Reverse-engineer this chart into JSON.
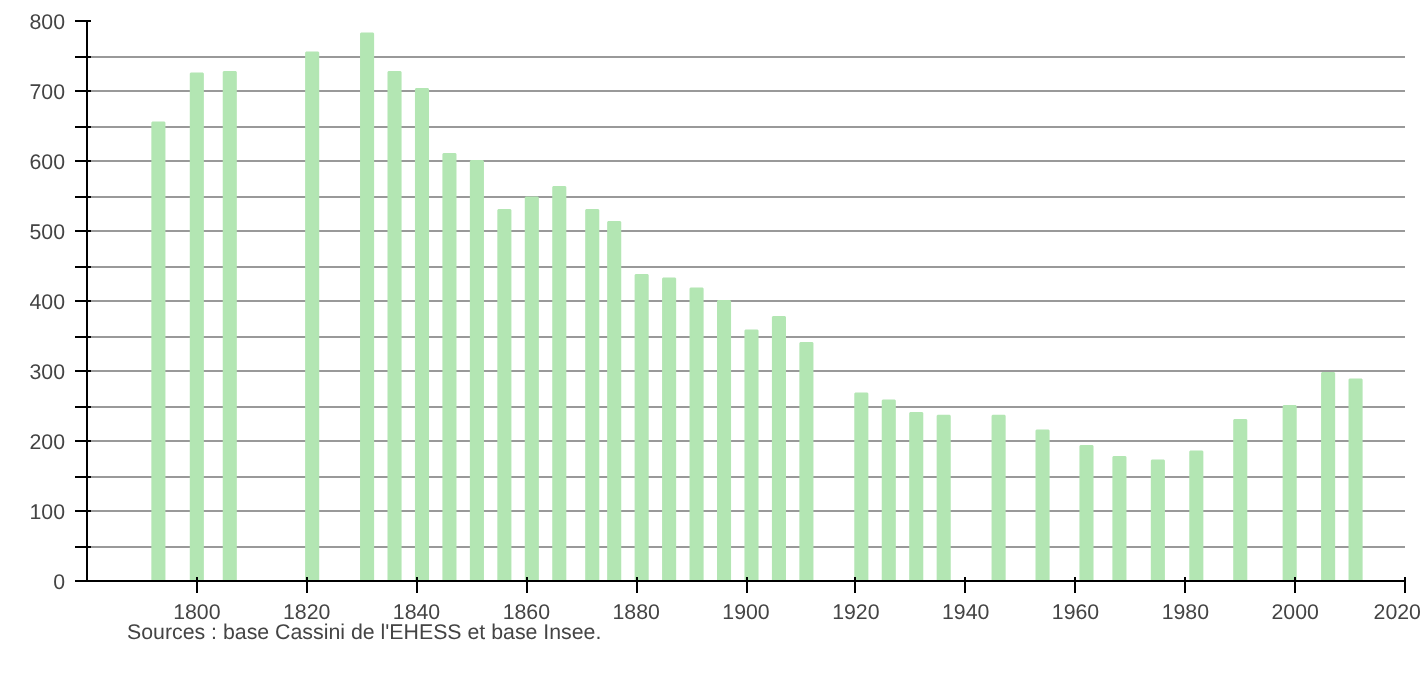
{
  "chart_data": {
    "type": "bar",
    "x": [
      1793,
      1800,
      1806,
      1821,
      1831,
      1836,
      1841,
      1846,
      1851,
      1856,
      1861,
      1866,
      1872,
      1876,
      1881,
      1886,
      1891,
      1896,
      1901,
      1906,
      1911,
      1921,
      1926,
      1931,
      1936,
      1946,
      1954,
      1962,
      1968,
      1975,
      1982,
      1990,
      1999,
      2006,
      2011
    ],
    "values": [
      655,
      725,
      727,
      755,
      782,
      727,
      703,
      610,
      600,
      530,
      548,
      563,
      530,
      513,
      437,
      432,
      418,
      400,
      358,
      377,
      340,
      268,
      258,
      240,
      236,
      236,
      215,
      193,
      177,
      172,
      185,
      230,
      250,
      297,
      288
    ],
    "color": "#b3e6b3",
    "xlim": [
      1780,
      2020
    ],
    "xticks": [
      1800,
      1820,
      1840,
      1860,
      1880,
      1900,
      1920,
      1940,
      1960,
      1980,
      2000,
      2020
    ],
    "ylim": [
      0,
      800
    ],
    "yticks": [
      0,
      {
        "value": 50,
        "label": null
      },
      100,
      {
        "value": 150,
        "label": null
      },
      200,
      {
        "value": 250,
        "label": null
      },
      300,
      {
        "value": 350,
        "label": null
      },
      400,
      {
        "value": 450,
        "label": null
      },
      500,
      {
        "value": 550,
        "label": null
      },
      600,
      {
        "value": 650,
        "label": null
      },
      700,
      {
        "value": 750,
        "label": null
      },
      800
    ],
    "grid": "y",
    "annotations": [
      "Sources : base Cassini de l'EHESS et base Insee."
    ]
  }
}
